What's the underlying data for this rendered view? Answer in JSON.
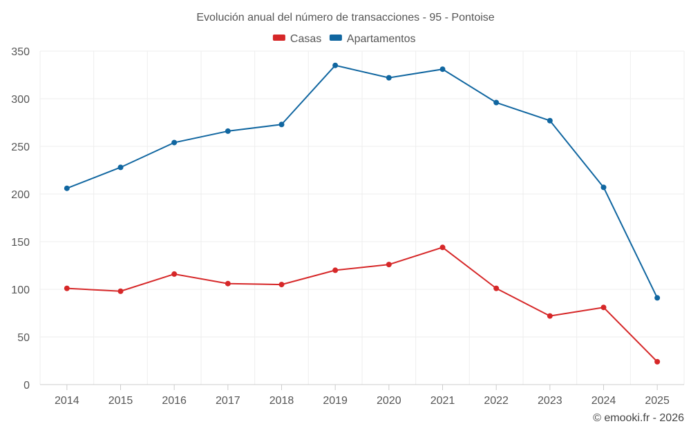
{
  "chart_data": {
    "type": "line",
    "title": "Evolución anual del número de transacciones - 95 - Pontoise",
    "xlabel": "",
    "ylabel": "",
    "categories": [
      "2014",
      "2015",
      "2016",
      "2017",
      "2018",
      "2019",
      "2020",
      "2021",
      "2022",
      "2023",
      "2024",
      "2025"
    ],
    "ylim": [
      0,
      350
    ],
    "yticks": [
      0,
      50,
      100,
      150,
      200,
      250,
      300,
      350
    ],
    "grid": true,
    "legend_position": "top-center",
    "series": [
      {
        "name": "Casas",
        "color": "#d62728",
        "values": [
          101,
          98,
          116,
          106,
          105,
          120,
          126,
          144,
          101,
          72,
          81,
          24
        ]
      },
      {
        "name": "Apartamentos",
        "color": "#1066a0",
        "values": [
          206,
          228,
          254,
          266,
          273,
          335,
          322,
          331,
          296,
          277,
          207,
          91
        ]
      }
    ]
  },
  "credit": "© emooki.fr - 2026"
}
